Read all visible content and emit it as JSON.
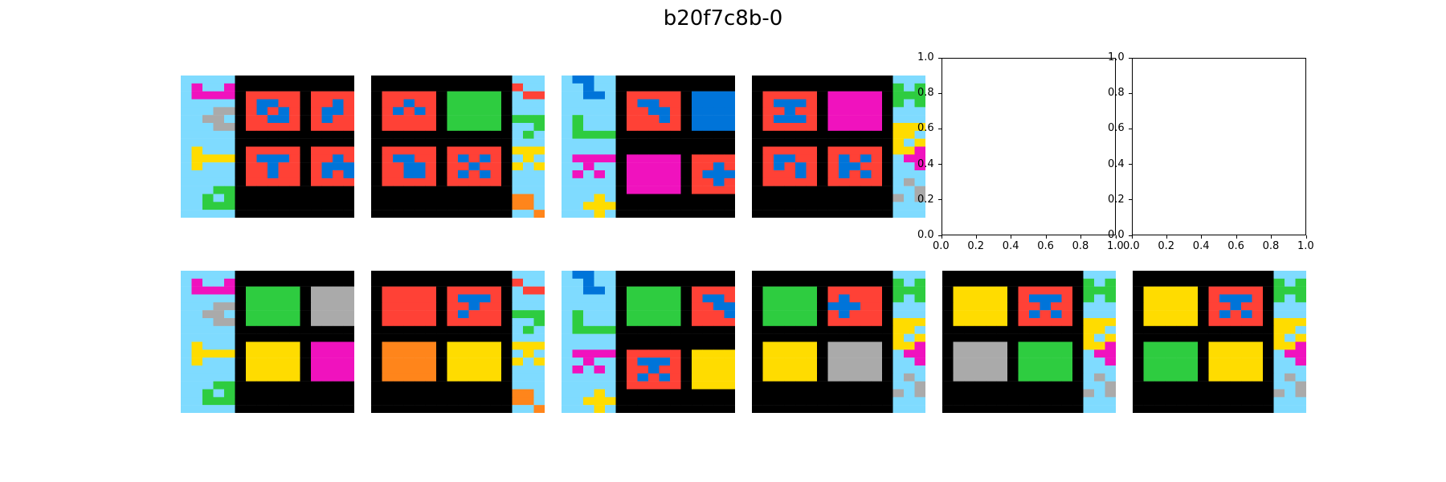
{
  "title": "b20f7c8b-0",
  "palette": {
    "0": "#000000",
    "1": "#0074D9",
    "2": "#FF4136",
    "3": "#2ECC40",
    "4": "#FFDC00",
    "5": "#AAAAAA",
    "6": "#F012BE",
    "7": "#FF851B",
    "8": "#7FDBFF",
    "9": "#870C25"
  },
  "empty_axes": {
    "ticks": [
      "0.0",
      "0.2",
      "0.4",
      "0.6",
      "0.8",
      "1.0"
    ]
  },
  "grids": [
    [
      "8888800000000000",
      "8688600000000000",
      "8666602222202222",
      "8888802112202212",
      "8885502121202112",
      "8855802211202122",
      "8885502222202222",
      "8888800000000000",
      "8888800000000000",
      "8488802222202222",
      "8444402111202212",
      "8488802212202111",
      "8888802212202121",
      "8888802222202222",
      "8883300000000000",
      "8838300000000000",
      "8833300000000000",
      "8888800000000000"
    ],
    [
      "0000000000000888",
      "0000000000000288",
      "0222220333330822",
      "0221220333330888",
      "0212120333330888",
      "0222220333330333",
      "0222220333330883",
      "0000000000000838",
      "0000000000000888",
      "0222220222220444",
      "0211220212120848",
      "0221120221220484",
      "0221120212120888",
      "0222220222220888",
      "0000000000000888",
      "0000000000000778",
      "0000000000000778",
      "0000000000000887"
    ],
    [
      "8118800000000000",
      "8818800000000000",
      "8811802222201111",
      "8888802112201111",
      "8888802211201111",
      "8388802221201111",
      "8388802222201111",
      "8333300000000000",
      "8888800000000000",
      "8888800000000000",
      "8666606666602222",
      "8868806666602212",
      "8686806666602111",
      "8888806666602212",
      "8888806666602222",
      "8884800000000000",
      "8844400000000000",
      "8884800000000000"
    ],
    [
      "0000000000000888",
      "0000000000000383",
      "0222220666660333",
      "0211120666660383",
      "0221220666660888",
      "0211120666660888",
      "0222220666660444",
      "0000000000000448",
      "0000000000000484",
      "0222220222220446",
      "0211220212120866",
      "0212120211220886",
      "0222120212120888",
      "0222220222220858",
      "0000000000000885",
      "0000000000000585",
      "0000000000000888",
      "0000000000000888"
    ],
    [
      "8888800000000000",
      "8688600000000000",
      "8666603333305555",
      "8888803333305555",
      "8885503333305555",
      "8855803333305555",
      "8885503333305555",
      "8888800000000000",
      "8888800000000000",
      "8488804444406666",
      "8444404444406666",
      "8488804444406666",
      "8888804444406666",
      "8888804444406666",
      "8883300000000000",
      "8838300000000000",
      "8833300000000000",
      "8888800000000000"
    ],
    [
      "0000000000000888",
      "0000000000000288",
      "0222220222220822",
      "0222220211120888",
      "0222220221220888",
      "0222220212220333",
      "0222220222220883",
      "0000000000000838",
      "0000000000000888",
      "0777770444440444",
      "0777770444440848",
      "0777770444440484",
      "0777770444440888",
      "0777770444440888",
      "0000000000000888",
      "0000000000000778",
      "0000000000000778",
      "0000000000000887"
    ],
    [
      "8118800000000000",
      "8818800000000000",
      "8811803333302222",
      "8888803333302112",
      "8888803333302211",
      "8388803333302221",
      "8388803333302222",
      "8333300000000000",
      "8888800000000000",
      "8888800000000000",
      "8666602222204444",
      "8868802111204444",
      "8686802212204444",
      "8888802121204444",
      "8888802222204444",
      "8884800000000000",
      "8844400000000000",
      "8884800000000000"
    ],
    [
      "0000000000000888",
      "0000000000000383",
      "0333330222220333",
      "0333330212220383",
      "0333330111220888",
      "0333330212220888",
      "0333330222220444",
      "0000000000000448",
      "0000000000000484",
      "0444440555550446",
      "0444440555550866",
      "0444440555550886",
      "0444440555550888",
      "0444440555550858",
      "0000000000000885",
      "0000000000000585",
      "0000000000000888",
      "0000000000000888"
    ],
    [
      "0000000000000888",
      "0000000000000383",
      "0444440222220333",
      "0444440211120383",
      "0444440221220888",
      "0444440212120888",
      "0444440222220444",
      "0000000000000448",
      "0000000000000484",
      "0555550333330446",
      "0555550333330866",
      "0555550333330886",
      "0555550333330888",
      "0555550333330858",
      "0000000000000885",
      "0000000000000585",
      "0000000000000888",
      "0000000000000888"
    ],
    [
      "0000000000000888",
      "0000000000000383",
      "0444440222220333",
      "0444440211120383",
      "0444440221220888",
      "0444440212120888",
      "0444440222220444",
      "0000000000000448",
      "0000000000000484",
      "0333330444440446",
      "0333330444440866",
      "0333330444440886",
      "0333330444440888",
      "0333330444440858",
      "0000000000000885",
      "0000000000000585",
      "0000000000000888",
      "0000000000000888"
    ]
  ]
}
